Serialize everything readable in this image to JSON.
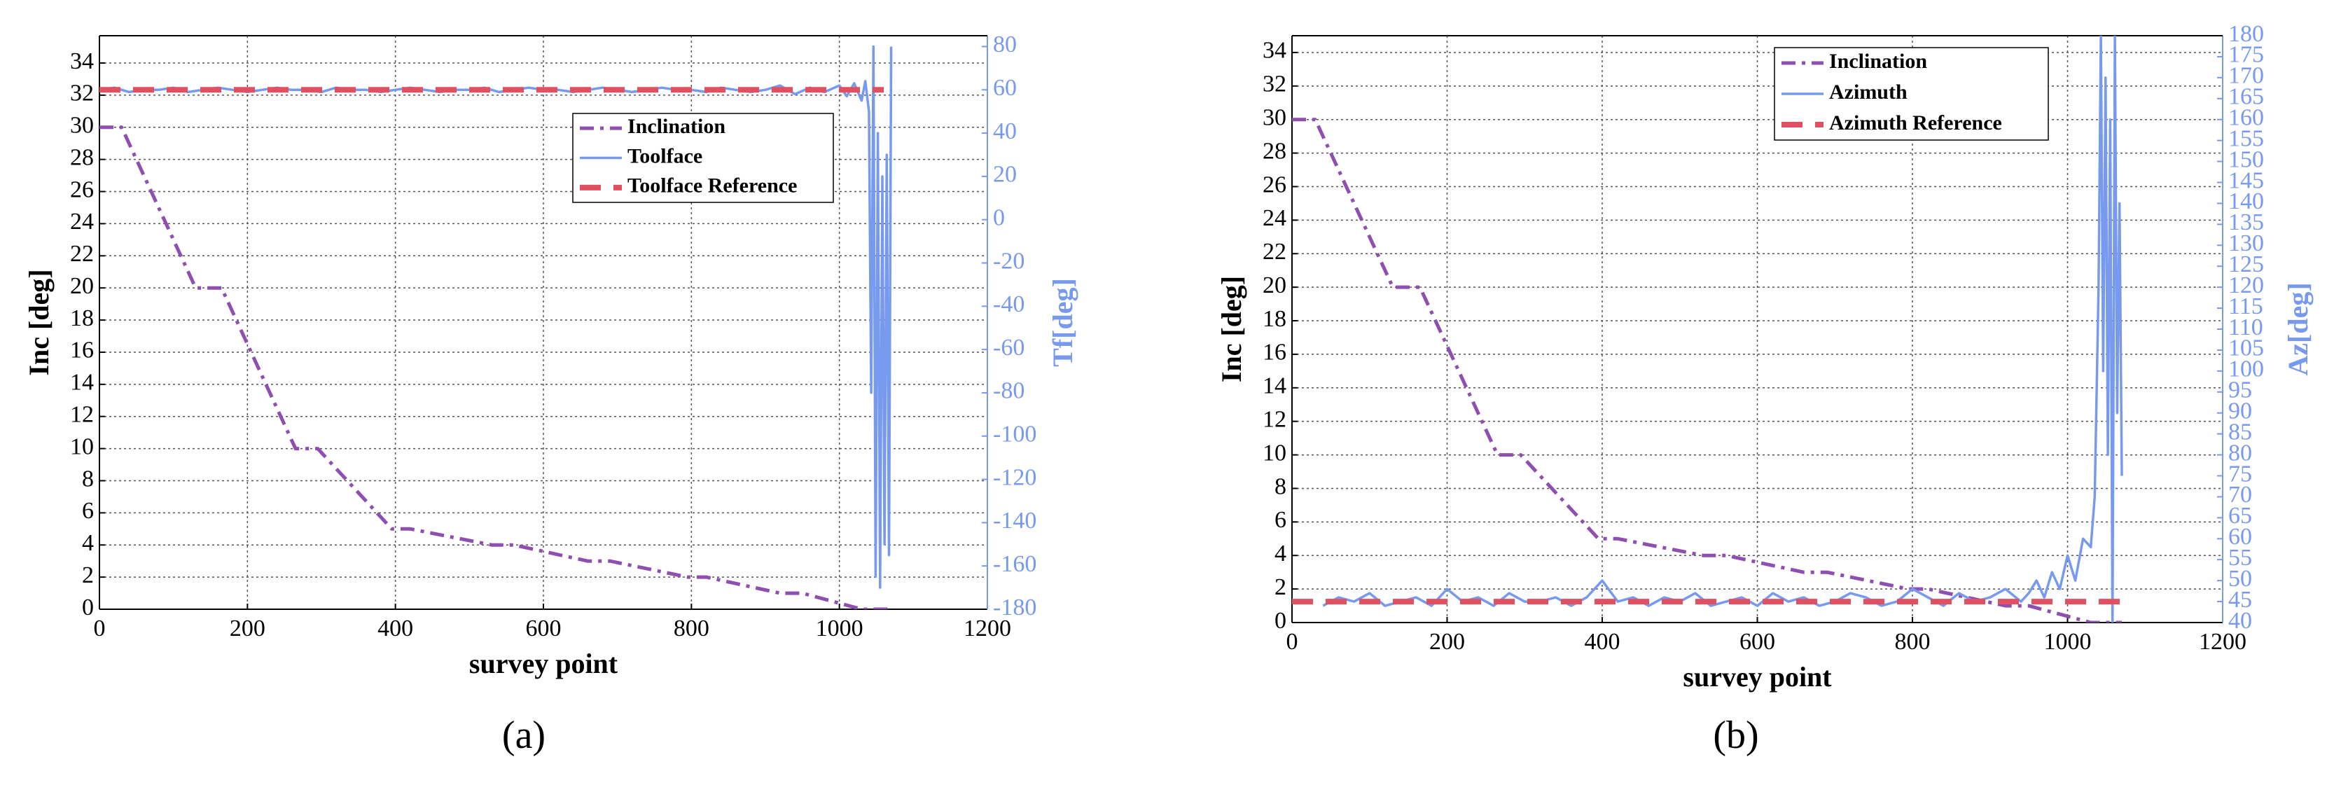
{
  "chart_data": [
    {
      "type": "line",
      "caption": "(a)",
      "xlabel": "survey point",
      "ylabel": "Inc [deg]",
      "y2label": "Tf[deg]",
      "xlim": [
        0,
        1200
      ],
      "xticks": [
        0,
        200,
        400,
        600,
        800,
        1000,
        1200
      ],
      "ylim": [
        0,
        35.7
      ],
      "yticks": [
        0,
        2,
        4,
        6,
        8,
        10,
        12,
        14,
        16,
        18,
        20,
        22,
        24,
        26,
        28,
        30,
        32,
        34
      ],
      "y2lim": [
        -180,
        85
      ],
      "y2ticks": [
        -180,
        -160,
        -140,
        -120,
        -100,
        -80,
        -60,
        -40,
        -20,
        0,
        20,
        40,
        60,
        80
      ],
      "grid": true,
      "legend": "upper right",
      "series": [
        {
          "name": "Inclination",
          "color": "#8e4fb0",
          "linestyle": "dashdot",
          "axis": "y",
          "x": [
            0,
            30,
            130,
            165,
            265,
            295,
            395,
            420,
            530,
            560,
            660,
            690,
            795,
            820,
            920,
            950,
            1030,
            1070
          ],
          "values": [
            30,
            30,
            20,
            20,
            10,
            10,
            5,
            5,
            4,
            4,
            3,
            3,
            2,
            2,
            1,
            1,
            0,
            0
          ]
        },
        {
          "name": "Toolface",
          "color": "#7799ee",
          "linestyle": "solid",
          "axis": "y2",
          "x": [
            0,
            20,
            40,
            60,
            80,
            100,
            120,
            140,
            160,
            180,
            200,
            220,
            240,
            260,
            280,
            300,
            320,
            340,
            360,
            380,
            400,
            420,
            440,
            460,
            480,
            500,
            520,
            540,
            560,
            580,
            600,
            620,
            640,
            660,
            680,
            700,
            720,
            740,
            760,
            780,
            800,
            820,
            840,
            860,
            880,
            900,
            920,
            940,
            960,
            980,
            1000,
            1010,
            1020,
            1030,
            1035,
            1040,
            1043,
            1046,
            1049,
            1052,
            1055,
            1058,
            1061,
            1064,
            1067,
            1070
          ],
          "values": [
            60,
            61,
            59,
            60,
            60,
            61,
            59,
            60,
            61,
            60,
            59,
            60,
            61,
            60,
            60,
            59,
            61,
            60,
            60,
            59,
            60,
            61,
            60,
            59,
            60,
            60,
            61,
            59,
            60,
            61,
            60,
            60,
            59,
            60,
            61,
            60,
            59,
            60,
            61,
            60,
            60,
            59,
            61,
            60,
            59,
            60,
            62,
            58,
            61,
            59,
            62,
            57,
            63,
            55,
            64,
            50,
            -80,
            80,
            -165,
            40,
            -170,
            20,
            -150,
            30,
            -155,
            80
          ]
        },
        {
          "name": "Toolface Reference",
          "color": "#e05060",
          "linestyle": "dashed",
          "axis": "y2",
          "x": [
            0,
            1060
          ],
          "values": [
            60,
            60
          ]
        }
      ]
    },
    {
      "type": "line",
      "caption": "(b)",
      "xlabel": "survey point",
      "ylabel": "Inc [deg]",
      "y2label": "Az[deg]",
      "xlim": [
        0,
        1200
      ],
      "xticks": [
        0,
        200,
        400,
        600,
        800,
        1000,
        1200
      ],
      "ylim": [
        0,
        35
      ],
      "yticks": [
        0,
        2,
        4,
        6,
        8,
        10,
        12,
        14,
        16,
        18,
        20,
        22,
        24,
        26,
        28,
        30,
        32,
        34
      ],
      "y2lim": [
        40,
        180
      ],
      "y2ticks": [
        40,
        45,
        50,
        55,
        60,
        65,
        70,
        75,
        80,
        85,
        90,
        95,
        100,
        105,
        110,
        115,
        120,
        125,
        130,
        135,
        140,
        145,
        150,
        155,
        160,
        165,
        170,
        175,
        180
      ],
      "grid": true,
      "legend": "upper center",
      "series": [
        {
          "name": "Inclination",
          "color": "#8e4fb0",
          "linestyle": "dashdot",
          "axis": "y",
          "x": [
            0,
            30,
            130,
            165,
            265,
            295,
            395,
            420,
            530,
            560,
            660,
            690,
            795,
            820,
            920,
            950,
            1030,
            1070
          ],
          "values": [
            30,
            30,
            20,
            20,
            10,
            10,
            5,
            5,
            4,
            4,
            3,
            3,
            2,
            2,
            1,
            1,
            0,
            0
          ]
        },
        {
          "name": "Azimuth",
          "color": "#7799ee",
          "linestyle": "solid",
          "axis": "y2",
          "x": [
            40,
            60,
            80,
            100,
            120,
            140,
            160,
            180,
            200,
            220,
            240,
            260,
            280,
            300,
            320,
            340,
            360,
            380,
            400,
            420,
            440,
            460,
            480,
            500,
            520,
            540,
            560,
            580,
            600,
            620,
            640,
            660,
            680,
            700,
            720,
            740,
            760,
            780,
            800,
            820,
            840,
            860,
            880,
            900,
            920,
            940,
            950,
            960,
            970,
            980,
            990,
            1000,
            1010,
            1020,
            1030,
            1035,
            1040,
            1043,
            1046,
            1049,
            1052,
            1055,
            1058,
            1061,
            1064,
            1067,
            1070
          ],
          "values": [
            44,
            46,
            45,
            47,
            44,
            45,
            46,
            44,
            48,
            45,
            46,
            44,
            47,
            45,
            45,
            46,
            44,
            46,
            50,
            45,
            46,
            44,
            46,
            45,
            47,
            44,
            45,
            46,
            44,
            47,
            45,
            46,
            44,
            45,
            47,
            46,
            44,
            45,
            48,
            46,
            44,
            47,
            45,
            46,
            48,
            45,
            47,
            50,
            46,
            52,
            48,
            56,
            50,
            60,
            58,
            70,
            120,
            180,
            100,
            170,
            80,
            160,
            40,
            180,
            90,
            140,
            75
          ]
        },
        {
          "name": "Azimuth Reference",
          "color": "#e05060",
          "linestyle": "dashed",
          "axis": "y2",
          "x": [
            0,
            1070
          ],
          "values": [
            45,
            45
          ]
        }
      ]
    }
  ]
}
